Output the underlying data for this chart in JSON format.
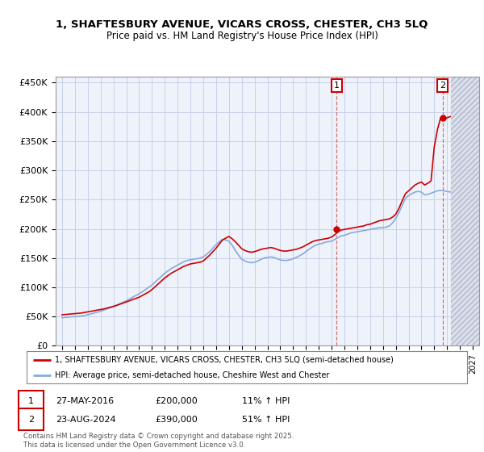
{
  "title_line1": "1, SHAFTESBURY AVENUE, VICARS CROSS, CHESTER, CH3 5LQ",
  "title_line2": "Price paid vs. HM Land Registry's House Price Index (HPI)",
  "ylabel_ticks": [
    "£0",
    "£50K",
    "£100K",
    "£150K",
    "£200K",
    "£250K",
    "£300K",
    "£350K",
    "£400K",
    "£450K"
  ],
  "ytick_values": [
    0,
    50000,
    100000,
    150000,
    200000,
    250000,
    300000,
    350000,
    400000,
    450000
  ],
  "ylim": [
    0,
    460000
  ],
  "xlim_start": 1994.5,
  "xlim_end": 2027.5,
  "background_color": "#ffffff",
  "plot_bg_color": "#eef2fa",
  "grid_color": "#c8d0e8",
  "red_color": "#cc0000",
  "blue_color": "#88aadd",
  "annotation_box_color": "#cc0000",
  "legend_label_red": "1, SHAFTESBURY AVENUE, VICARS CROSS, CHESTER, CH3 5LQ (semi-detached house)",
  "legend_label_blue": "HPI: Average price, semi-detached house, Cheshire West and Chester",
  "marker1_x": 2016.4,
  "marker1_y": 200000,
  "marker2_x": 2024.65,
  "marker2_y": 390000,
  "marker1_date": "27-MAY-2016",
  "marker1_price": "£200,000",
  "marker1_hpi": "11% ↑ HPI",
  "marker2_date": "23-AUG-2024",
  "marker2_price": "£390,000",
  "marker2_hpi": "51% ↑ HPI",
  "footnote": "Contains HM Land Registry data © Crown copyright and database right 2025.\nThis data is licensed under the Open Government Licence v3.0.",
  "hatch_start": 2025.3,
  "hatch_end": 2027.5,
  "red_x": [
    1995.0,
    1995.25,
    1995.5,
    1995.75,
    1996.0,
    1996.25,
    1996.5,
    1996.75,
    1997.0,
    1997.25,
    1997.5,
    1997.75,
    1998.0,
    1998.25,
    1998.5,
    1998.75,
    1999.0,
    1999.25,
    1999.5,
    1999.75,
    2000.0,
    2000.25,
    2000.5,
    2000.75,
    2001.0,
    2001.25,
    2001.5,
    2001.75,
    2002.0,
    2002.25,
    2002.5,
    2002.75,
    2003.0,
    2003.25,
    2003.5,
    2003.75,
    2004.0,
    2004.25,
    2004.5,
    2004.75,
    2005.0,
    2005.25,
    2005.5,
    2005.75,
    2006.0,
    2006.25,
    2006.5,
    2006.75,
    2007.0,
    2007.25,
    2007.5,
    2007.75,
    2008.0,
    2008.25,
    2008.5,
    2008.75,
    2009.0,
    2009.25,
    2009.5,
    2009.75,
    2010.0,
    2010.25,
    2010.5,
    2010.75,
    2011.0,
    2011.25,
    2011.5,
    2011.75,
    2012.0,
    2012.25,
    2012.5,
    2012.75,
    2013.0,
    2013.25,
    2013.5,
    2013.75,
    2014.0,
    2014.25,
    2014.5,
    2014.75,
    2015.0,
    2015.25,
    2015.5,
    2015.75,
    2016.0,
    2016.25,
    2016.5,
    2016.75,
    2017.0,
    2017.25,
    2017.5,
    2017.75,
    2018.0,
    2018.25,
    2018.5,
    2018.75,
    2019.0,
    2019.25,
    2019.5,
    2019.75,
    2020.0,
    2020.25,
    2020.5,
    2020.75,
    2021.0,
    2021.25,
    2021.5,
    2021.75,
    2022.0,
    2022.25,
    2022.5,
    2022.75,
    2023.0,
    2023.25,
    2023.5,
    2023.75,
    2024.0,
    2024.25,
    2024.5,
    2024.65,
    2024.75,
    2025.0,
    2025.25
  ],
  "red_y": [
    53000,
    53500,
    54000,
    54500,
    55000,
    55500,
    56000,
    57000,
    58000,
    59000,
    60000,
    61000,
    62000,
    63000,
    64500,
    66000,
    67500,
    69000,
    71000,
    73000,
    75000,
    77000,
    79000,
    81000,
    83000,
    86000,
    89000,
    92000,
    96000,
    101000,
    106000,
    111000,
    116000,
    120000,
    124000,
    127000,
    130000,
    133000,
    136000,
    138000,
    140000,
    141000,
    142000,
    143000,
    145000,
    150000,
    155000,
    161000,
    167000,
    174000,
    181000,
    184000,
    187000,
    183000,
    178000,
    172000,
    166000,
    163000,
    161000,
    160000,
    161000,
    163000,
    165000,
    166000,
    167000,
    168000,
    167000,
    165000,
    163000,
    162000,
    162000,
    163000,
    164000,
    165000,
    167000,
    169000,
    172000,
    175000,
    178000,
    180000,
    181000,
    182000,
    183000,
    184000,
    186000,
    190000,
    195000,
    198000,
    199000,
    200000,
    201000,
    202000,
    203000,
    204000,
    205000,
    207000,
    208000,
    210000,
    212000,
    214000,
    215000,
    216000,
    217000,
    220000,
    225000,
    235000,
    248000,
    260000,
    265000,
    270000,
    275000,
    278000,
    280000,
    275000,
    278000,
    282000,
    340000,
    370000,
    390000,
    390000,
    388000,
    390000,
    392000
  ],
  "blue_x": [
    1995.0,
    1995.25,
    1995.5,
    1995.75,
    1996.0,
    1996.25,
    1996.5,
    1996.75,
    1997.0,
    1997.25,
    1997.5,
    1997.75,
    1998.0,
    1998.25,
    1998.5,
    1998.75,
    1999.0,
    1999.25,
    1999.5,
    1999.75,
    2000.0,
    2000.25,
    2000.5,
    2000.75,
    2001.0,
    2001.25,
    2001.5,
    2001.75,
    2002.0,
    2002.25,
    2002.5,
    2002.75,
    2003.0,
    2003.25,
    2003.5,
    2003.75,
    2004.0,
    2004.25,
    2004.5,
    2004.75,
    2005.0,
    2005.25,
    2005.5,
    2005.75,
    2006.0,
    2006.25,
    2006.5,
    2006.75,
    2007.0,
    2007.25,
    2007.5,
    2007.75,
    2008.0,
    2008.25,
    2008.5,
    2008.75,
    2009.0,
    2009.25,
    2009.5,
    2009.75,
    2010.0,
    2010.25,
    2010.5,
    2010.75,
    2011.0,
    2011.25,
    2011.5,
    2011.75,
    2012.0,
    2012.25,
    2012.5,
    2012.75,
    2013.0,
    2013.25,
    2013.5,
    2013.75,
    2014.0,
    2014.25,
    2014.5,
    2014.75,
    2015.0,
    2015.25,
    2015.5,
    2015.75,
    2016.0,
    2016.25,
    2016.5,
    2016.75,
    2017.0,
    2017.25,
    2017.5,
    2017.75,
    2018.0,
    2018.25,
    2018.5,
    2018.75,
    2019.0,
    2019.25,
    2019.5,
    2019.75,
    2020.0,
    2020.25,
    2020.5,
    2020.75,
    2021.0,
    2021.25,
    2021.5,
    2021.75,
    2022.0,
    2022.25,
    2022.5,
    2022.75,
    2023.0,
    2023.25,
    2023.5,
    2023.75,
    2024.0,
    2024.25,
    2024.5,
    2024.75,
    2025.0,
    2025.25
  ],
  "blue_y": [
    48000,
    48500,
    49000,
    49500,
    50000,
    50500,
    51000,
    52000,
    53000,
    54500,
    56000,
    57500,
    59000,
    61000,
    63000,
    65000,
    67000,
    69500,
    72000,
    74500,
    77000,
    80000,
    83000,
    86000,
    89000,
    92500,
    96000,
    100000,
    104000,
    109000,
    114000,
    119000,
    124000,
    128000,
    132000,
    135000,
    138000,
    141000,
    144000,
    146000,
    147000,
    148000,
    149000,
    150000,
    152000,
    156000,
    161000,
    167000,
    173000,
    178000,
    182000,
    181000,
    179000,
    172000,
    163000,
    155000,
    148000,
    145000,
    143000,
    142000,
    143000,
    145000,
    148000,
    150000,
    151000,
    152000,
    151000,
    149000,
    147000,
    146000,
    146000,
    147000,
    149000,
    151000,
    154000,
    157000,
    161000,
    165000,
    169000,
    172000,
    174000,
    175000,
    177000,
    178000,
    179000,
    182000,
    185000,
    188000,
    189000,
    191000,
    193000,
    194000,
    195000,
    196000,
    197000,
    198000,
    199000,
    200000,
    201000,
    202000,
    202000,
    203000,
    205000,
    210000,
    218000,
    228000,
    240000,
    252000,
    257000,
    260000,
    263000,
    264000,
    263000,
    258000,
    259000,
    261000,
    263000,
    265000,
    266000,
    265000,
    264000,
    263000
  ]
}
